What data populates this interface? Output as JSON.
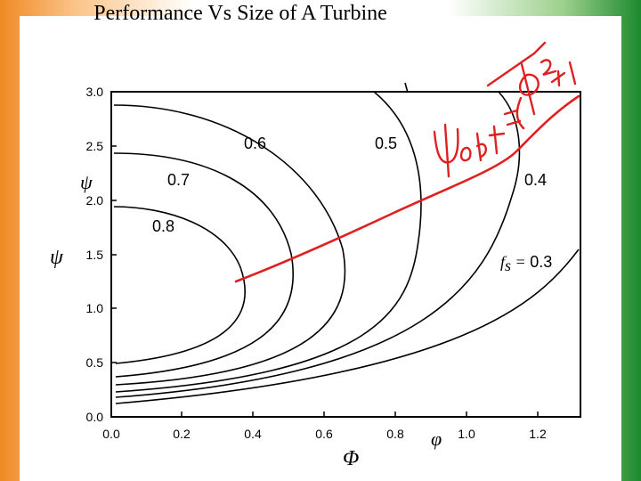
{
  "title": "Performance Vs Size of A Turbine",
  "axes": {
    "x_ticks": [
      "0.0",
      "0.2",
      "0.4",
      "0.6",
      "0.8",
      "1.0",
      "1.2"
    ],
    "y_ticks": [
      "0.0",
      "0.5",
      "1.0",
      "1.5",
      "2.0",
      "2.5",
      "3.0"
    ],
    "x_symbol_small": "φ",
    "x_symbol_large": "Φ",
    "y_symbol_small": "ψ",
    "y_symbol_large": "ψ"
  },
  "contour_labels": [
    "0.8",
    "0.7",
    "0.6",
    "0.5",
    "0.4"
  ],
  "fs_label": {
    "prefix": "f",
    "sub": "s",
    "eq": " = ",
    "value": "0.3"
  },
  "handwriting": {
    "text": "ψopt = √(Φ²+1)",
    "color": "#e02020"
  },
  "colors": {
    "annotation": "#e02020",
    "curve": "#000000"
  }
}
